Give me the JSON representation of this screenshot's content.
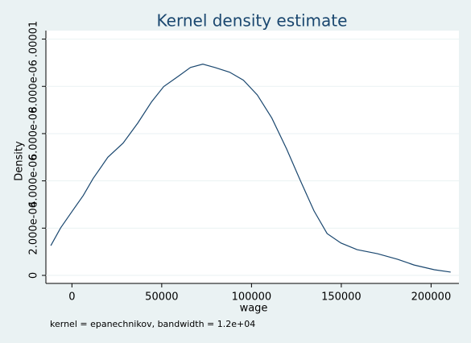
{
  "chart_data": {
    "type": "line",
    "title": "Kernel density estimate",
    "x_label": "wage",
    "y_label": "Density",
    "note": "kernel = epanechnikov, bandwidth =  1.2e+04",
    "x": [
      -11765,
      -6300,
      0,
      6300,
      11800,
      20000,
      28500,
      36700,
      44300,
      51100,
      59300,
      66000,
      72900,
      79600,
      87800,
      95500,
      103200,
      111300,
      119500,
      127100,
      134800,
      142100,
      149800,
      158800,
      170100,
      181400,
      190500,
      201800,
      210900
    ],
    "series": [
      {
        "name": "Density",
        "color": "#1a476f",
        "values": [
          1.26e-06,
          2.01e-06,
          2.7e-06,
          3.38e-06,
          4.1e-06,
          5e-06,
          5.6e-06,
          6.45e-06,
          7.34e-06,
          7.99e-06,
          8.43e-06,
          8.8e-06,
          8.94e-06,
          8.8e-06,
          8.6e-06,
          8.26e-06,
          7.64e-06,
          6.66e-06,
          5.36e-06,
          4.03e-06,
          2.73e-06,
          1.77e-06,
          1.37e-06,
          1.09e-06,
          9.2e-07,
          6.8e-07,
          4.4e-07,
          2.4e-07,
          1.4e-07
        ]
      }
    ],
    "xlim": [
      -14500,
      215500
    ],
    "ylim": [
      -3.4e-07,
      1.036e-05
    ],
    "xticks": [
      0,
      50000,
      100000,
      150000,
      200000
    ],
    "yticks": [
      0,
      {
        "value": 2e-06,
        "label": "2.000e-06"
      },
      {
        "value": 4e-06,
        "label": "4.000e-06"
      },
      {
        "value": 6e-06,
        "label": "6.000e-06"
      },
      {
        "value": 8e-06,
        "label": "8.000e-06"
      },
      {
        "value": 1e-05,
        "label": ".00001"
      }
    ],
    "grid": true
  }
}
